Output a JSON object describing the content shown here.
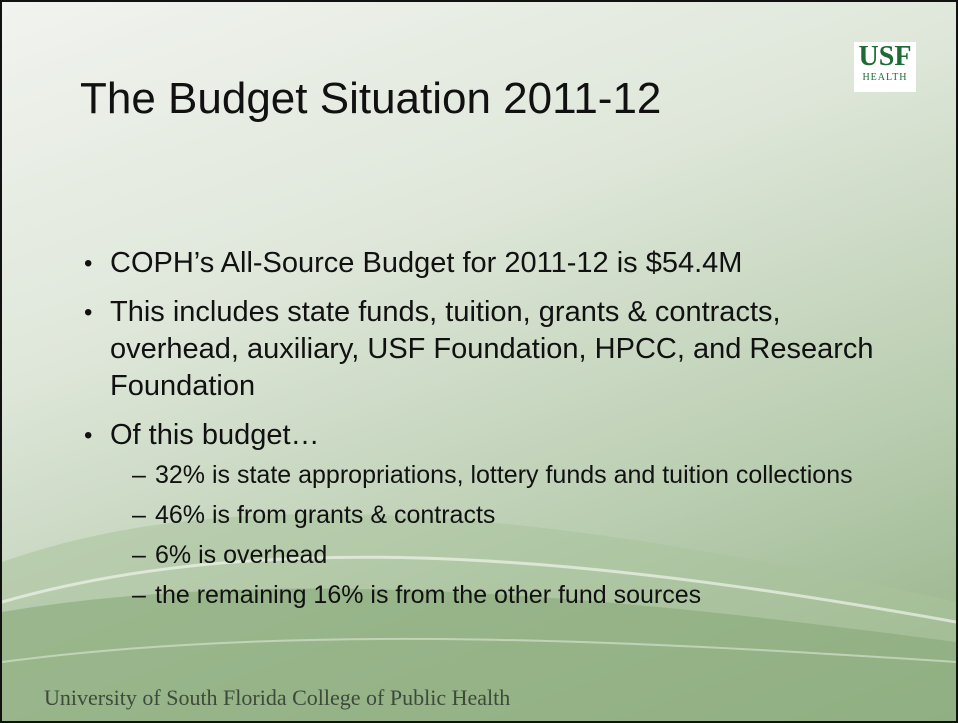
{
  "title": "The Budget Situation 2011-12",
  "logo": {
    "name": "USF",
    "sub": "HEALTH"
  },
  "bullets": [
    {
      "text": "COPH’s All-Source Budget for 2011-12 is $54.4M"
    },
    {
      "text": "This includes state funds, tuition, grants & contracts, overhead, auxiliary, USF Foundation, HPCC, and Research Foundation"
    },
    {
      "text": "Of this budget…",
      "subbullets": [
        "32% is state appropriations, lottery funds and tuition collections",
        "46% is from grants & contracts",
        "6% is overhead",
        "the remaining 16% is from the other fund sources"
      ]
    }
  ],
  "footer": "University of South Florida College of Public Health"
}
